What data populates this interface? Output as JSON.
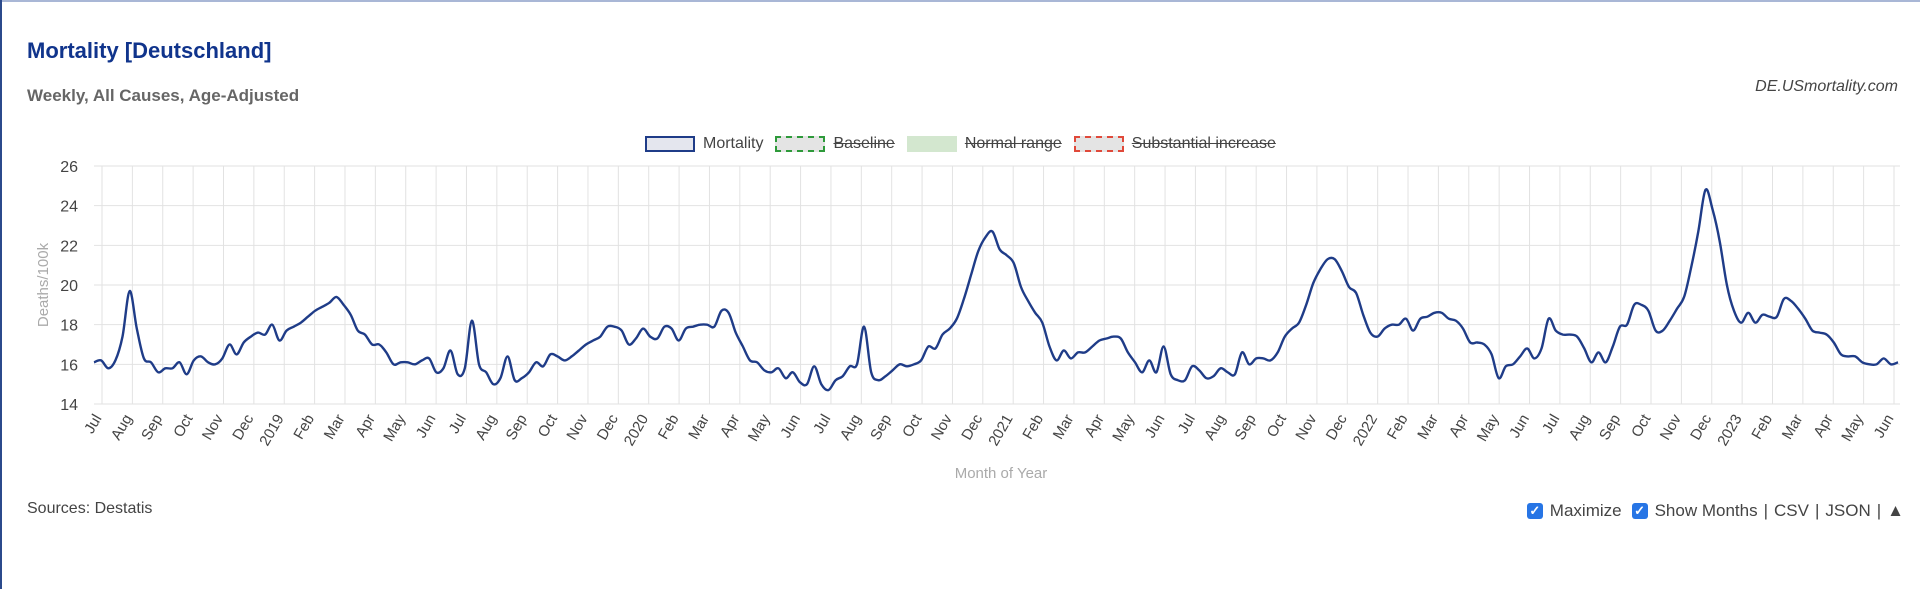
{
  "header": {
    "title": "Mortality [Deutschland]",
    "subtitle": "Weekly, All Causes, Age-Adjusted",
    "site": "DE.USmortality.com"
  },
  "legend": [
    {
      "label": "Mortality",
      "struck": false,
      "style": "solid-blue"
    },
    {
      "label": "Baseline",
      "struck": true,
      "style": "dashed-green"
    },
    {
      "label": "Normal range",
      "struck": true,
      "style": "fill-green"
    },
    {
      "label": "Substantial increase",
      "struck": true,
      "style": "dashed-red"
    }
  ],
  "footer": {
    "sources": "Sources: Destatis",
    "maximize": "Maximize",
    "show_months": "Show Months",
    "csv": "CSV",
    "json": "JSON",
    "separator": "|",
    "up_arrow": "▲",
    "check": "✓"
  },
  "colors": {
    "series": "#1f3c88",
    "baseline": "#2e9a3a",
    "normal_range": "#d3e7cf",
    "increase": "#e0493a",
    "grid": "#e2e2e2",
    "title": "#10348c"
  },
  "chart_data": {
    "type": "line",
    "title": "Mortality [Deutschland]",
    "subtitle": "Weekly, All Causes, Age-Adjusted",
    "xlabel": "Month of Year",
    "ylabel": "Deaths/100k",
    "ylim": [
      14,
      26
    ],
    "yticks": [
      14,
      16,
      18,
      20,
      22,
      24,
      26
    ],
    "grid": true,
    "legend_position": "top-center",
    "x_ticks": [
      "Jul",
      "Aug",
      "Sep",
      "Oct",
      "Nov",
      "Dec",
      "2019",
      "Feb",
      "Mar",
      "Apr",
      "May",
      "Jun",
      "Jul",
      "Aug",
      "Sep",
      "Oct",
      "Nov",
      "Dec",
      "2020",
      "Feb",
      "Mar",
      "Apr",
      "May",
      "Jun",
      "Jul",
      "Aug",
      "Sep",
      "Oct",
      "Nov",
      "Dec",
      "2021",
      "Feb",
      "Mar",
      "Apr",
      "May",
      "Jun",
      "Jul",
      "Aug",
      "Sep",
      "Oct",
      "Nov",
      "Dec",
      "2022",
      "Feb",
      "Mar",
      "Apr",
      "May",
      "Jun",
      "Jul",
      "Aug",
      "Sep",
      "Oct",
      "Nov",
      "Dec",
      "2023",
      "Feb",
      "Mar",
      "Apr",
      "May",
      "Jun"
    ],
    "series": [
      {
        "name": "Mortality",
        "values": [
          16.1,
          16.2,
          15.8,
          16.2,
          17.4,
          19.7,
          17.8,
          16.3,
          16.1,
          15.6,
          15.8,
          15.8,
          16.1,
          15.5,
          16.2,
          16.4,
          16.1,
          16.0,
          16.3,
          17.0,
          16.5,
          17.1,
          17.4,
          17.6,
          17.5,
          18.0,
          17.2,
          17.7,
          17.9,
          18.1,
          18.4,
          18.7,
          18.9,
          19.1,
          19.4,
          19.0,
          18.5,
          17.7,
          17.5,
          17.0,
          17.0,
          16.6,
          16.0,
          16.1,
          16.1,
          16.0,
          16.2,
          16.3,
          15.6,
          15.8,
          16.7,
          15.5,
          15.8,
          18.2,
          16.0,
          15.6,
          15.0,
          15.3,
          16.4,
          15.2,
          15.3,
          15.6,
          16.1,
          15.9,
          16.5,
          16.4,
          16.2,
          16.4,
          16.7,
          17.0,
          17.2,
          17.4,
          17.9,
          17.9,
          17.7,
          17.0,
          17.3,
          17.8,
          17.4,
          17.3,
          17.9,
          17.8,
          17.2,
          17.8,
          17.9,
          18.0,
          18.0,
          17.9,
          18.7,
          18.6,
          17.6,
          16.9,
          16.2,
          16.1,
          15.7,
          15.6,
          15.8,
          15.3,
          15.6,
          15.1,
          15.0,
          15.9,
          15.0,
          14.7,
          15.2,
          15.4,
          15.9,
          16.0,
          17.9,
          15.6,
          15.2,
          15.4,
          15.7,
          16.0,
          15.9,
          16.0,
          16.2,
          16.9,
          16.8,
          17.5,
          17.8,
          18.3,
          19.3,
          20.5,
          21.7,
          22.4,
          22.7,
          21.8,
          21.5,
          21.1,
          19.9,
          19.2,
          18.6,
          18.1,
          16.9,
          16.2,
          16.7,
          16.3,
          16.6,
          16.6,
          16.9,
          17.2,
          17.3,
          17.4,
          17.3,
          16.6,
          16.1,
          15.6,
          16.2,
          15.6,
          16.9,
          15.5,
          15.2,
          15.2,
          15.9,
          15.7,
          15.3,
          15.4,
          15.8,
          15.6,
          15.5,
          16.6,
          16.0,
          16.3,
          16.3,
          16.2,
          16.6,
          17.4,
          17.8,
          18.1,
          19.0,
          20.1,
          20.8,
          21.3,
          21.3,
          20.7,
          19.9,
          19.6,
          18.5,
          17.6,
          17.4,
          17.8,
          18.0,
          18.0,
          18.3,
          17.7,
          18.3,
          18.4,
          18.6,
          18.6,
          18.3,
          18.2,
          17.8,
          17.1,
          17.1,
          17.0,
          16.5,
          15.3,
          15.9,
          16.0,
          16.4,
          16.8,
          16.3,
          16.8,
          18.3,
          17.7,
          17.5,
          17.5,
          17.4,
          16.8,
          16.1,
          16.6,
          16.1,
          16.9,
          17.9,
          18.0,
          19.0,
          19.0,
          18.7,
          17.7,
          17.7,
          18.2,
          18.8,
          19.4,
          20.9,
          22.7,
          24.8,
          23.8,
          22.2,
          20.0,
          18.7,
          18.1,
          18.6,
          18.1,
          18.5,
          18.4,
          18.4,
          19.3,
          19.2,
          18.8,
          18.3,
          17.7,
          17.6,
          17.5,
          17.1,
          16.5,
          16.4,
          16.4,
          16.1,
          16.0,
          16.0,
          16.3,
          16.0,
          16.1
        ]
      }
    ]
  }
}
